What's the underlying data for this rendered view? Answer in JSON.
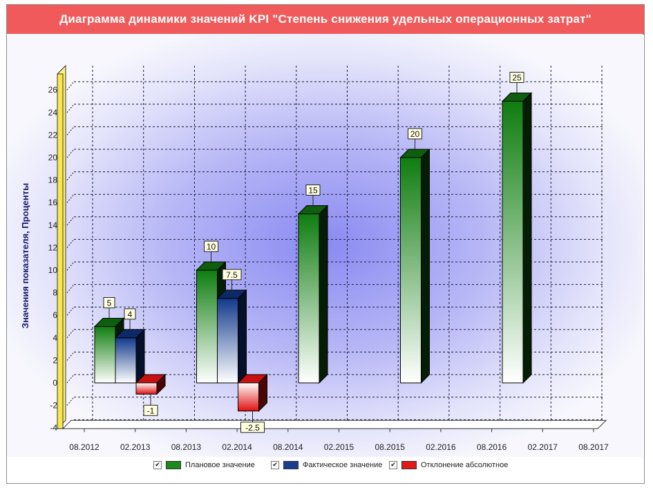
{
  "title": "Диаграмма динамики значений KPI \"Степень снижения удельных операционных затрат\"",
  "chart_data": {
    "type": "bar",
    "title": "Диаграмма динамики значений KPI \"Степень снижения удельных операционных затрат\"",
    "ylabel": "Значения показателя, Проценты",
    "xlabel": "",
    "ylim": [
      -4,
      27
    ],
    "yticks": [
      -4,
      -2,
      0,
      2,
      4,
      6,
      8,
      10,
      12,
      14,
      16,
      18,
      20,
      22,
      24,
      26
    ],
    "x_tick_labels": [
      "08.2012",
      "02.2013",
      "08.2013",
      "02.2014",
      "08.2014",
      "02.2015",
      "08.2015",
      "02.2016",
      "08.2016",
      "02.2017",
      "08.2017"
    ],
    "groups": [
      {
        "period": "2012-2013",
        "plan": 5,
        "fact": 4,
        "deviation": -1
      },
      {
        "period": "2013-2014",
        "plan": 10,
        "fact": 7.5,
        "deviation": -2.5
      },
      {
        "period": "2014-2015",
        "plan": 15
      },
      {
        "period": "2015-2016",
        "plan": 20
      },
      {
        "period": "2016-2017",
        "plan": 25
      }
    ],
    "series": [
      {
        "name": "Плановое значение",
        "color": "#1a8a1a",
        "values": [
          5,
          10,
          15,
          20,
          25
        ]
      },
      {
        "name": "Фактическое значение",
        "color": "#1a3f8f",
        "values": [
          4,
          7.5,
          null,
          null,
          null
        ]
      },
      {
        "name": "Отклонение абсолютное",
        "color": "#e01818",
        "values": [
          -1,
          -2.5,
          null,
          null,
          null
        ]
      }
    ],
    "data_labels": [
      {
        "series": 0,
        "group": 0,
        "text": "5"
      },
      {
        "series": 1,
        "group": 0,
        "text": "4"
      },
      {
        "series": 2,
        "group": 0,
        "text": "-1"
      },
      {
        "series": 0,
        "group": 1,
        "text": "10"
      },
      {
        "series": 1,
        "group": 1,
        "text": "7.5"
      },
      {
        "series": 2,
        "group": 1,
        "text": "-2.5"
      },
      {
        "series": 0,
        "group": 2,
        "text": "15"
      },
      {
        "series": 0,
        "group": 3,
        "text": "20"
      },
      {
        "series": 0,
        "group": 4,
        "text": "25"
      }
    ],
    "legend": [
      {
        "label": "Плановое значение",
        "color": "#1a8a1a",
        "checked": true
      },
      {
        "label": "Фактическое значение",
        "color": "#1a3f8f",
        "checked": true
      },
      {
        "label": "Отклонение абсолютное",
        "color": "#e01818",
        "checked": true
      }
    ],
    "grid": true,
    "legend_position": "bottom"
  }
}
